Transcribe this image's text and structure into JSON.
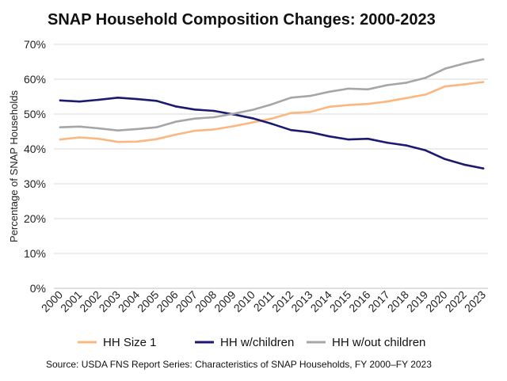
{
  "chart_data": {
    "type": "line",
    "title": "SNAP Household Composition Changes: 2000-2023",
    "ylabel": "Percentage of SNAP Households",
    "xlabel": "",
    "ylim": [
      0,
      70
    ],
    "yticks": [
      "0%",
      "10%",
      "20%",
      "30%",
      "40%",
      "50%",
      "60%",
      "70%"
    ],
    "yunit": "%",
    "grid": "horizontal",
    "legend_position": "bottom",
    "categories": [
      "2000",
      "2001",
      "2002",
      "2003",
      "2004",
      "2005",
      "2006",
      "2007",
      "2008",
      "2009",
      "2010",
      "2011",
      "2012",
      "2013",
      "2014",
      "2015",
      "2016",
      "2017",
      "2018",
      "2019",
      "2020",
      "2022",
      "2023"
    ],
    "series": [
      {
        "name": "HH Size 1",
        "color": "#fbb77f",
        "values": [
          42.7,
          43.3,
          42.9,
          42.0,
          42.1,
          42.8,
          44.1,
          45.2,
          45.6,
          46.5,
          47.6,
          48.7,
          50.3,
          50.6,
          52.1,
          52.6,
          52.9,
          53.6,
          54.6,
          55.6,
          57.9,
          58.5,
          59.2
        ]
      },
      {
        "name": "HH w/children",
        "color": "#1c1a6e",
        "values": [
          53.9,
          53.6,
          54.1,
          54.7,
          54.3,
          53.8,
          52.2,
          51.3,
          50.9,
          49.9,
          48.8,
          47.2,
          45.4,
          44.8,
          43.6,
          42.7,
          42.9,
          41.8,
          41.0,
          39.6,
          37.1,
          35.5,
          34.4
        ]
      },
      {
        "name": "HH w/out children",
        "color": "#a6a6a6",
        "values": [
          46.2,
          46.4,
          45.9,
          45.3,
          45.7,
          46.2,
          47.8,
          48.7,
          49.1,
          50.1,
          51.2,
          52.8,
          54.7,
          55.2,
          56.4,
          57.3,
          57.1,
          58.3,
          59.0,
          60.4,
          63.0,
          64.5,
          65.7
        ]
      }
    ],
    "source": "Source: USDA FNS Report Series: Characteristics of SNAP Households, FY 2000–FY 2023"
  }
}
